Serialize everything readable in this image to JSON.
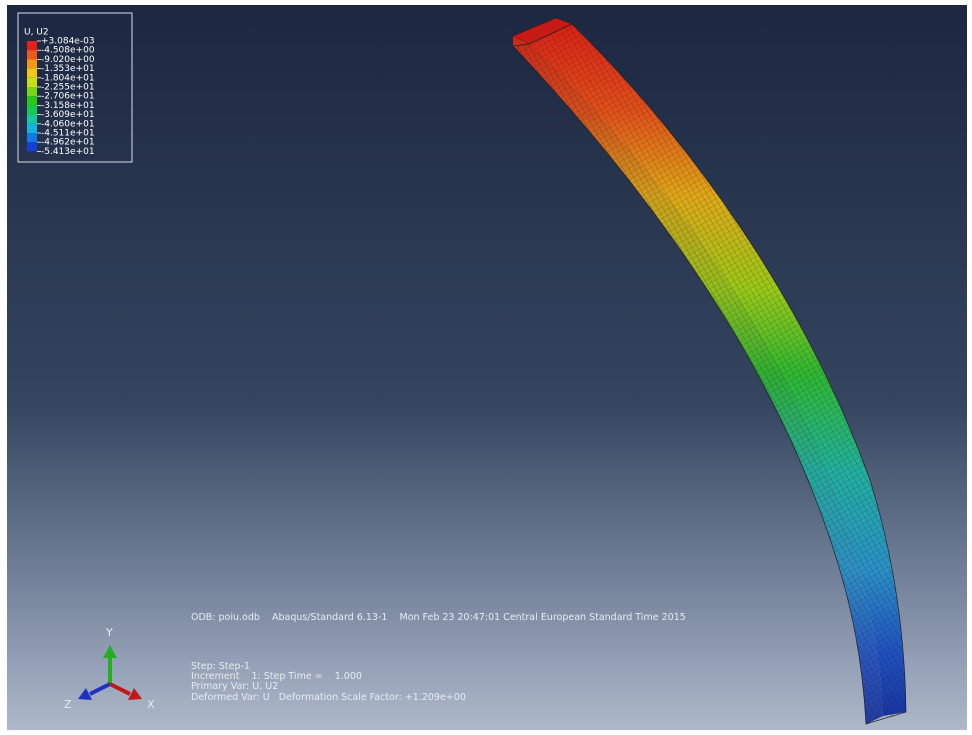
{
  "legend": {
    "title": "U, U2",
    "labels": [
      "+3.084e-03",
      "-4.508e+00",
      "-9.020e+00",
      "-1.353e+01",
      "-1.804e+01",
      "-2.255e+01",
      "-2.706e+01",
      "-3.158e+01",
      "-3.609e+01",
      "-4.060e+01",
      "-4.511e+01",
      "-4.962e+01",
      "-5.413e+01"
    ],
    "colors": [
      "#e8201c",
      "#ee5a18",
      "#f39a14",
      "#f3c814",
      "#c8e014",
      "#78d414",
      "#28c814",
      "#14c850",
      "#14c8a0",
      "#14b4e0",
      "#1478e8",
      "#1440d8"
    ]
  },
  "info": {
    "odb": "ODB: poiu.odb    Abaqus/Standard 6.13-1    Mon Feb 23 20:47:01 Central European Standard Time 2015",
    "step": "Step: Step-1",
    "increment": "Increment    1: Step Time =    1.000",
    "primary": "Primary Var: U, U2",
    "deformed": "Deformed Var: U   Deformation Scale Factor: +1.209e+00"
  },
  "triad": {
    "y": "Y",
    "z": "Z",
    "x": "X"
  }
}
